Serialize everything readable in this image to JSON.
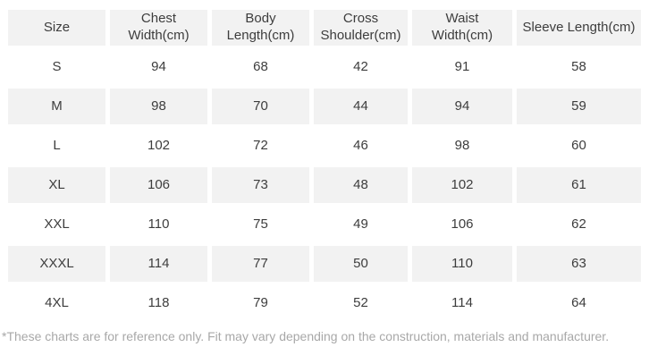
{
  "table": {
    "columns": [
      "Size",
      "Chest Width(cm)",
      "Body Length(cm)",
      "Cross Shoulder(cm)",
      "Waist Width(cm)",
      "Sleeve Length(cm)"
    ],
    "rows": [
      {
        "size": "S",
        "values": [
          "94",
          "68",
          "42",
          "91",
          "58"
        ]
      },
      {
        "size": "M",
        "values": [
          "98",
          "70",
          "44",
          "94",
          "59"
        ]
      },
      {
        "size": "L",
        "values": [
          "102",
          "72",
          "46",
          "98",
          "60"
        ]
      },
      {
        "size": "XL",
        "values": [
          "106",
          "73",
          "48",
          "102",
          "61"
        ]
      },
      {
        "size": "XXL",
        "values": [
          "110",
          "75",
          "49",
          "106",
          "62"
        ]
      },
      {
        "size": "XXXL",
        "values": [
          "114",
          "77",
          "50",
          "110",
          "63"
        ]
      },
      {
        "size": "4XL",
        "values": [
          "118",
          "79",
          "52",
          "114",
          "64"
        ]
      }
    ]
  },
  "footnote": "*These charts are for reference only. Fit may vary depending on the construction, materials and manufacturer.",
  "colors": {
    "stripe": "#f2f2f2",
    "cell_text": "#3d3d3d",
    "footnote_text": "#a8a8a8",
    "background": "#ffffff"
  }
}
